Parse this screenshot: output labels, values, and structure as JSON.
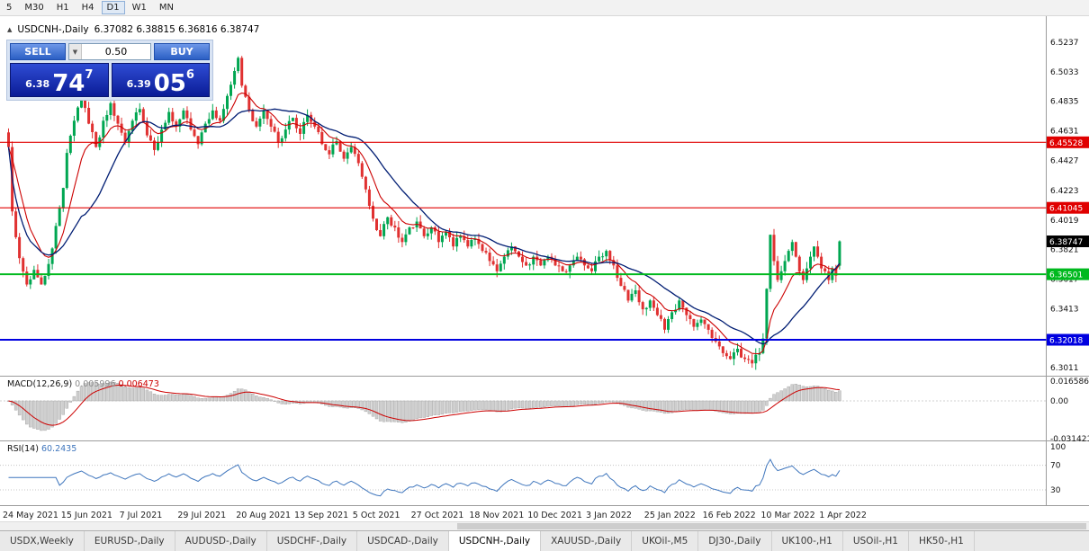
{
  "toolbar": {
    "timeframes": [
      {
        "label": "5",
        "active": false
      },
      {
        "label": "M30",
        "active": false
      },
      {
        "label": "H1",
        "active": false
      },
      {
        "label": "H4",
        "active": false
      },
      {
        "label": "D1",
        "active": true
      },
      {
        "label": "W1",
        "active": false
      },
      {
        "label": "MN",
        "active": false
      }
    ]
  },
  "chart_header": {
    "collapse_icon": "▲",
    "symbol_title": "USDCNH-,Daily",
    "ohlc_readout": "6.37082 6.38815 6.36816 6.38747"
  },
  "trade_panel": {
    "sell_label": "SELL",
    "buy_label": "BUY",
    "volume": "0.50",
    "sell_price_small": "6.38",
    "sell_price_big": "74",
    "sell_price_sup": "7",
    "buy_price_small": "6.39",
    "buy_price_big": "05",
    "buy_price_sup": "6"
  },
  "price_axis": {
    "ticks": [
      "6.5237",
      "6.5033",
      "6.4835",
      "6.4631",
      "6.4427",
      "6.4223",
      "6.4019",
      "6.3821",
      "6.3617",
      "6.3413",
      "6.3011"
    ],
    "tags": [
      {
        "text": "6.45528",
        "color": "#e00000"
      },
      {
        "text": "6.41045",
        "color": "#e00000"
      },
      {
        "text": "6.36501",
        "color": "#00b91e"
      },
      {
        "text": "6.32018",
        "color": "#0000e0"
      }
    ],
    "current_tag": {
      "text": "6.38747",
      "color": "#000000"
    }
  },
  "time_axis": {
    "labels": [
      {
        "text": "24 May 2021",
        "day": 0
      },
      {
        "text": "15 Jun 2021",
        "day": 16
      },
      {
        "text": "7 Jul 2021",
        "day": 32
      },
      {
        "text": "29 Jul 2021",
        "day": 48
      },
      {
        "text": "20 Aug 2021",
        "day": 64
      },
      {
        "text": "13 Sep 2021",
        "day": 80
      },
      {
        "text": "5 Oct 2021",
        "day": 96
      },
      {
        "text": "27 Oct 2021",
        "day": 112
      },
      {
        "text": "18 Nov 2021",
        "day": 128
      },
      {
        "text": "10 Dec 2021",
        "day": 144
      },
      {
        "text": "3 Jan 2022",
        "day": 160
      },
      {
        "text": "25 Jan 2022",
        "day": 176
      },
      {
        "text": "16 Feb 2022",
        "day": 192
      },
      {
        "text": "10 Mar 2022",
        "day": 208
      },
      {
        "text": "1 Apr 2022",
        "day": 224
      }
    ]
  },
  "macd_panel": {
    "label": "MACD(12,26,9)",
    "value_main": "0.005996",
    "value_signal": "0.006473",
    "axis_ticks": [
      "0.016586",
      "0.00",
      "-0.031421"
    ]
  },
  "rsi_panel": {
    "label": "RSI(14)",
    "value": "60.2435",
    "axis_ticks": [
      "100",
      "70",
      "30"
    ]
  },
  "tabs": [
    {
      "label": "USDX,Weekly",
      "active": false
    },
    {
      "label": "EURUSD-,Daily",
      "active": false
    },
    {
      "label": "AUDUSD-,Daily",
      "active": false
    },
    {
      "label": "USDCHF-,Daily",
      "active": false
    },
    {
      "label": "USDCAD-,Daily",
      "active": false
    },
    {
      "label": "USDCNH-,Daily",
      "active": true
    },
    {
      "label": "XAUUSD-,Daily",
      "active": false
    },
    {
      "label": "UKOil-,M5",
      "active": false
    },
    {
      "label": "DJ30-,Daily",
      "active": false
    },
    {
      "label": "UK100-,H1",
      "active": false
    },
    {
      "label": "USOil-,H1",
      "active": false
    },
    {
      "label": "HK50-,H1",
      "active": false
    }
  ],
  "chart_data": {
    "type": "candlestick",
    "symbol": "USDCNH-",
    "timeframe": "Daily",
    "current_ohlc": {
      "open": 6.37082,
      "high": 6.38815,
      "low": 6.36816,
      "close": 6.38747
    },
    "visible_price_range": [
      6.2956,
      6.5415
    ],
    "horizontal_levels": [
      {
        "price": 6.45528,
        "color": "#e00000",
        "width": 1.2
      },
      {
        "price": 6.41045,
        "color": "#e00000",
        "width": 1.2
      },
      {
        "price": 6.36501,
        "color": "#00b91e",
        "width": 2
      },
      {
        "price": 6.32018,
        "color": "#0000e0",
        "width": 2
      }
    ],
    "num_candles": 229,
    "close_path_anchors": [
      [
        0,
        6.452
      ],
      [
        1,
        6.408
      ],
      [
        3,
        6.376
      ],
      [
        5,
        6.358
      ],
      [
        7,
        6.368
      ],
      [
        9,
        6.358
      ],
      [
        11,
        6.372
      ],
      [
        13,
        6.398
      ],
      [
        15,
        6.424
      ],
      [
        16,
        6.448
      ],
      [
        18,
        6.47
      ],
      [
        20,
        6.488
      ],
      [
        22,
        6.468
      ],
      [
        24,
        6.452
      ],
      [
        26,
        6.47
      ],
      [
        28,
        6.482
      ],
      [
        30,
        6.468
      ],
      [
        32,
        6.455
      ],
      [
        34,
        6.47
      ],
      [
        36,
        6.478
      ],
      [
        38,
        6.46
      ],
      [
        40,
        6.45
      ],
      [
        42,
        6.464
      ],
      [
        44,
        6.476
      ],
      [
        46,
        6.466
      ],
      [
        48,
        6.477
      ],
      [
        50,
        6.464
      ],
      [
        52,
        6.454
      ],
      [
        54,
        6.468
      ],
      [
        56,
        6.477
      ],
      [
        58,
        6.47
      ],
      [
        60,
        6.487
      ],
      [
        62,
        6.504
      ],
      [
        63,
        6.513
      ],
      [
        64,
        6.494
      ],
      [
        66,
        6.477
      ],
      [
        68,
        6.466
      ],
      [
        70,
        6.477
      ],
      [
        72,
        6.466
      ],
      [
        74,
        6.455
      ],
      [
        76,
        6.464
      ],
      [
        78,
        6.472
      ],
      [
        80,
        6.461
      ],
      [
        82,
        6.474
      ],
      [
        84,
        6.466
      ],
      [
        86,
        6.454
      ],
      [
        88,
        6.447
      ],
      [
        90,
        6.456
      ],
      [
        92,
        6.444
      ],
      [
        94,
        6.452
      ],
      [
        96,
        6.441
      ],
      [
        98,
        6.423
      ],
      [
        100,
        6.403
      ],
      [
        102,
        6.391
      ],
      [
        104,
        6.404
      ],
      [
        106,
        6.397
      ],
      [
        108,
        6.387
      ],
      [
        110,
        6.397
      ],
      [
        112,
        6.401
      ],
      [
        114,
        6.391
      ],
      [
        116,
        6.397
      ],
      [
        118,
        6.387
      ],
      [
        120,
        6.394
      ],
      [
        122,
        6.384
      ],
      [
        124,
        6.391
      ],
      [
        126,
        6.384
      ],
      [
        128,
        6.389
      ],
      [
        130,
        6.381
      ],
      [
        132,
        6.374
      ],
      [
        134,
        6.367
      ],
      [
        136,
        6.377
      ],
      [
        138,
        6.384
      ],
      [
        140,
        6.377
      ],
      [
        142,
        6.371
      ],
      [
        144,
        6.377
      ],
      [
        146,
        6.371
      ],
      [
        148,
        6.377
      ],
      [
        150,
        6.371
      ],
      [
        152,
        6.367
      ],
      [
        154,
        6.371
      ],
      [
        156,
        6.377
      ],
      [
        158,
        6.371
      ],
      [
        160,
        6.367
      ],
      [
        162,
        6.377
      ],
      [
        164,
        6.381
      ],
      [
        166,
        6.371
      ],
      [
        168,
        6.357
      ],
      [
        170,
        6.347
      ],
      [
        172,
        6.354
      ],
      [
        174,
        6.341
      ],
      [
        176,
        6.347
      ],
      [
        178,
        6.337
      ],
      [
        180,
        6.327
      ],
      [
        182,
        6.339
      ],
      [
        184,
        6.347
      ],
      [
        186,
        6.337
      ],
      [
        188,
        6.329
      ],
      [
        190,
        6.334
      ],
      [
        192,
        6.327
      ],
      [
        194,
        6.319
      ],
      [
        196,
        6.311
      ],
      [
        198,
        6.307
      ],
      [
        200,
        6.314
      ],
      [
        202,
        6.307
      ],
      [
        204,
        6.304
      ],
      [
        206,
        6.311
      ],
      [
        207,
        6.321
      ],
      [
        208,
        6.355
      ],
      [
        209,
        6.392
      ],
      [
        210,
        6.374
      ],
      [
        211,
        6.361
      ],
      [
        212,
        6.367
      ],
      [
        213,
        6.374
      ],
      [
        214,
        6.381
      ],
      [
        215,
        6.387
      ],
      [
        216,
        6.377
      ],
      [
        217,
        6.367
      ],
      [
        218,
        6.361
      ],
      [
        219,
        6.369
      ],
      [
        220,
        6.377
      ],
      [
        221,
        6.384
      ],
      [
        222,
        6.377
      ],
      [
        223,
        6.369
      ],
      [
        224,
        6.367
      ],
      [
        225,
        6.361
      ],
      [
        226,
        6.369
      ],
      [
        227,
        6.364
      ],
      [
        228,
        6.3875
      ]
    ],
    "moving_averages": [
      {
        "type": "EMA",
        "period": 10,
        "color": "#cc0000"
      },
      {
        "type": "SMA",
        "period": 21,
        "color": "#001d73"
      }
    ],
    "indicators": [
      {
        "name": "MACD",
        "params": [
          12,
          26,
          9
        ],
        "main": 0.005996,
        "signal": 0.006473,
        "axis_max": 0.016586,
        "axis_min": -0.031421
      },
      {
        "name": "RSI",
        "period": 14,
        "value": 60.2435,
        "levels": [
          70,
          30
        ]
      }
    ],
    "x_axis_dates": [
      "24 May 2021",
      "15 Jun 2021",
      "7 Jul 2021",
      "29 Jul 2021",
      "20 Aug 2021",
      "13 Sep 2021",
      "5 Oct 2021",
      "27 Oct 2021",
      "18 Nov 2021",
      "10 Dec 2021",
      "3 Jan 2022",
      "25 Jan 2022",
      "16 Feb 2022",
      "10 Mar 2022",
      "1 Apr 2022"
    ]
  },
  "colors": {
    "bull": "#00a651",
    "bear": "#e03131",
    "ma_fast": "#cc0000",
    "ma_slow": "#001d73",
    "macd_hist": "#cfcfcf",
    "macd_hist_border": "#9e9e9e",
    "macd_signal": "#cc0000",
    "rsi_line": "#3f76bd",
    "panel_blue": "#0b1c96",
    "button_blue": "#2b5fc4"
  }
}
